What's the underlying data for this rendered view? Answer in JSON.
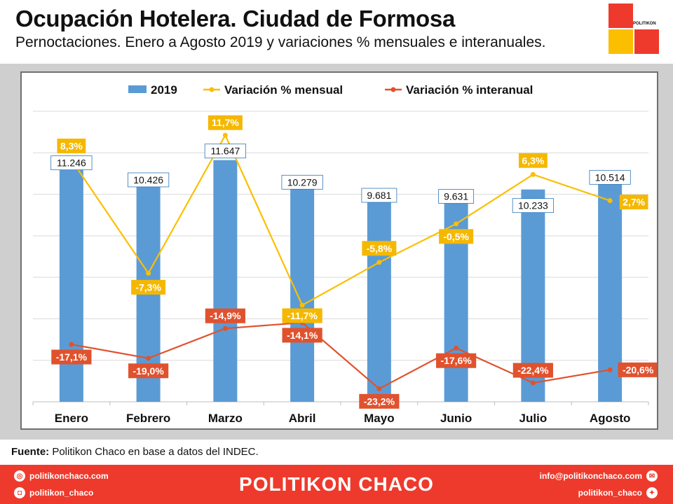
{
  "header": {
    "title": "Ocupación Hotelera. Ciudad de Formosa",
    "subtitle": "Pernoctaciones. Enero a Agosto 2019 y variaciones % mensuales e interanuales.",
    "logo_text": "POLITIKON",
    "logo_colors": [
      "#ee3a2c",
      "#ffffff",
      "#fbbf00",
      "#ee3a2c"
    ]
  },
  "chart_data": {
    "type": "bar",
    "categories": [
      "Enero",
      "Febrero",
      "Marzo",
      "Abril",
      "Mayo",
      "Junio",
      "Julio",
      "Agosto"
    ],
    "series": [
      {
        "name": "2019",
        "type": "bar",
        "color": "#5b9bd5",
        "values": [
          11246,
          10426,
          11647,
          10279,
          9681,
          9631,
          10233,
          10514
        ],
        "labels": [
          "11.246",
          "10.426",
          "11.647",
          "10.279",
          "9.681",
          "9.631",
          "10.233",
          "10.514"
        ]
      },
      {
        "name": "Variación % mensual",
        "type": "line",
        "color": "#fbbf00",
        "values": [
          8.3,
          -7.3,
          11.7,
          -11.7,
          -5.8,
          -0.5,
          6.3,
          2.7
        ],
        "labels": [
          "8,3%",
          "-7,3%",
          "11,7%",
          "-11,7%",
          "-5,8%",
          "-0,5%",
          "6,3%",
          "2,7%"
        ]
      },
      {
        "name": "Variación % interanual",
        "type": "line",
        "color": "#e0522e",
        "values": [
          -17.1,
          -19.0,
          -14.9,
          -14.1,
          -23.2,
          -17.6,
          -22.4,
          -20.6
        ],
        "labels": [
          "-17,1%",
          "-19,0%",
          "-14,9%",
          "-14,1%",
          "-23,2%",
          "-17,6%",
          "-22,4%",
          "-20,6%"
        ]
      }
    ],
    "legend_position": "top",
    "bar_axis": [
      0,
      14000
    ],
    "pct_axis": [
      -25,
      15
    ],
    "grid": true
  },
  "source": {
    "label": "Fuente:",
    "text": " Politikon Chaco en base a datos del INDEC."
  },
  "footer": {
    "brand": "POLITIKON CHACO",
    "web": "politikonchaco.com",
    "instagram": "politikon_chaco",
    "email": "info@politikonchaco.com",
    "twitter": "politikon_chaco"
  }
}
